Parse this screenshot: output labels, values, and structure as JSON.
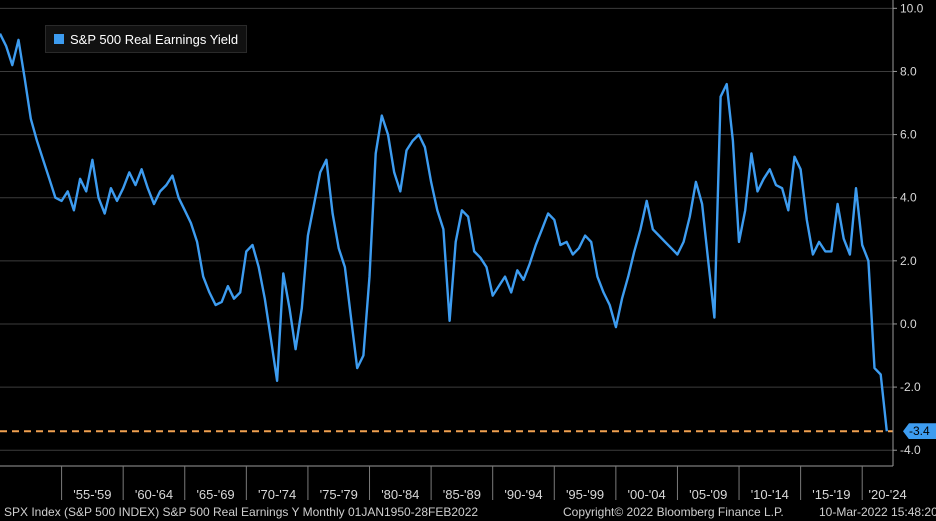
{
  "chart_data": {
    "type": "line",
    "legend": "S&P 500 Real Earnings Yield",
    "y_ticks": [
      "10.0",
      "8.0",
      "6.0",
      "4.0",
      "2.0",
      "0.0",
      "-2.0",
      "-4.0"
    ],
    "y_tick_values": [
      10,
      8,
      6,
      4,
      2,
      0,
      -2,
      -4
    ],
    "ylim": [
      -4.5,
      10.2
    ],
    "xlim": [
      1950,
      2022.5
    ],
    "x_ticks": [
      "'55-'59",
      "'60-'64",
      "'65-'69",
      "'70-'74",
      "'75-'79",
      "'80-'84",
      "'85-'89",
      "'90-'94",
      "'95-'99",
      "'00-'04",
      "'05-'09",
      "'10-'14",
      "'15-'19",
      "'20-'24"
    ],
    "x_tick_starts": [
      1955,
      1960,
      1965,
      1970,
      1975,
      1980,
      1985,
      1990,
      1995,
      2000,
      2005,
      2010,
      2015,
      2020,
      2025
    ],
    "last_value_label": "-3.4",
    "last_value": -3.4,
    "grid": true,
    "legend_position": "top-left",
    "colors": {
      "line": "#3d9cf0",
      "reference": "#f0a050",
      "grid": "#3c3c3c",
      "background": "#000000"
    },
    "series": [
      {
        "name": "S&P 500 Real Earnings Yield",
        "x": [
          1950,
          1950.5,
          1951,
          1951.5,
          1952,
          1952.5,
          1953,
          1953.5,
          1954,
          1954.5,
          1955,
          1955.5,
          1956,
          1956.5,
          1957,
          1957.5,
          1958,
          1958.5,
          1959,
          1959.5,
          1960,
          1960.5,
          1961,
          1961.5,
          1962,
          1962.5,
          1963,
          1963.5,
          1964,
          1964.5,
          1965,
          1965.5,
          1966,
          1966.5,
          1967,
          1967.5,
          1968,
          1968.5,
          1969,
          1969.5,
          1970,
          1970.5,
          1971,
          1971.5,
          1972,
          1972.5,
          1973,
          1973.5,
          1974,
          1974.5,
          1975,
          1975.5,
          1976,
          1976.5,
          1977,
          1977.5,
          1978,
          1978.5,
          1979,
          1979.5,
          1980,
          1980.5,
          1981,
          1981.5,
          1982,
          1982.5,
          1983,
          1983.5,
          1984,
          1984.5,
          1985,
          1985.5,
          1986,
          1986.5,
          1987,
          1987.5,
          1988,
          1988.5,
          1989,
          1989.5,
          1990,
          1990.5,
          1991,
          1991.5,
          1992,
          1992.5,
          1993,
          1993.5,
          1994,
          1994.5,
          1995,
          1995.5,
          1996,
          1996.5,
          1997,
          1997.5,
          1998,
          1998.5,
          1999,
          1999.5,
          2000,
          2000.5,
          2001,
          2001.5,
          2002,
          2002.5,
          2003,
          2003.5,
          2004,
          2004.5,
          2005,
          2005.5,
          2006,
          2006.5,
          2007,
          2007.5,
          2008,
          2008.5,
          2009,
          2009.5,
          2010,
          2010.5,
          2011,
          2011.5,
          2012,
          2012.5,
          2013,
          2013.5,
          2014,
          2014.5,
          2015,
          2015.5,
          2016,
          2016.5,
          2017,
          2017.5,
          2018,
          2018.5,
          2019,
          2019.5,
          2020,
          2020.5,
          2021,
          2021.5,
          2022
        ],
        "values": [
          9.2,
          8.8,
          8.2,
          9.0,
          7.8,
          6.5,
          5.8,
          5.2,
          4.6,
          4.0,
          3.9,
          4.2,
          3.6,
          4.6,
          4.2,
          5.2,
          4.0,
          3.5,
          4.3,
          3.9,
          4.3,
          4.8,
          4.4,
          4.9,
          4.3,
          3.8,
          4.2,
          4.4,
          4.7,
          4.0,
          3.6,
          3.2,
          2.6,
          1.5,
          1.0,
          0.6,
          0.7,
          1.2,
          0.8,
          1.0,
          2.3,
          2.5,
          1.8,
          0.8,
          -0.5,
          -1.8,
          1.6,
          0.5,
          -0.8,
          0.5,
          2.8,
          3.8,
          4.8,
          5.2,
          3.5,
          2.4,
          1.8,
          0.2,
          -1.4,
          -1.0,
          1.5,
          5.4,
          6.6,
          6.0,
          4.8,
          4.2,
          5.5,
          5.8,
          6.0,
          5.6,
          4.5,
          3.6,
          3.0,
          0.1,
          2.6,
          3.6,
          3.4,
          2.3,
          2.1,
          1.8,
          0.9,
          1.2,
          1.5,
          1.0,
          1.7,
          1.4,
          1.9,
          2.5,
          3.0,
          3.5,
          3.3,
          2.5,
          2.6,
          2.2,
          2.4,
          2.8,
          2.6,
          1.5,
          1.0,
          0.6,
          -0.1,
          0.8,
          1.5,
          2.3,
          3.0,
          3.9,
          3.0,
          2.8,
          2.6,
          2.4,
          2.2,
          2.6,
          3.4,
          4.5,
          3.8,
          2.0,
          0.2,
          7.2,
          7.6,
          5.8,
          2.6,
          3.6,
          5.4,
          4.2,
          4.6,
          4.9,
          4.4,
          4.3,
          3.6,
          5.3,
          4.9,
          3.3,
          2.2,
          2.6,
          2.3,
          2.3,
          3.8,
          2.7,
          2.2,
          4.3,
          2.5,
          2.0,
          -1.4,
          -1.6,
          -3.4
        ]
      }
    ]
  },
  "footer": {
    "left": "SPX Index (S&P 500 INDEX) S&P 500 Real Earnings Y  Monthly 01JAN1950-28FEB2022",
    "center": "Copyright© 2022 Bloomberg Finance L.P.",
    "right": "10-Mar-2022 15:48:20"
  }
}
